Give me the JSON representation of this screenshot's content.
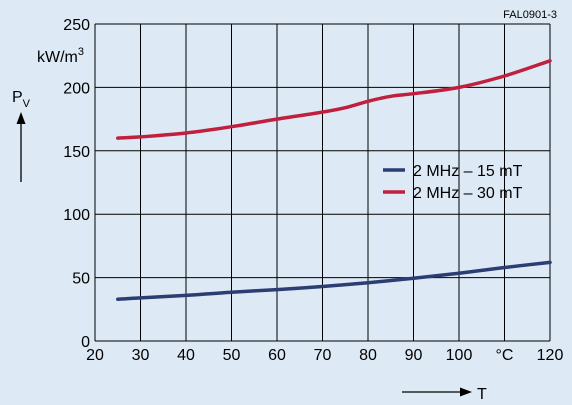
{
  "figure_id": "FAL0901-3",
  "chart_data": {
    "type": "line",
    "x_ticks": [
      "20",
      "30",
      "40",
      "50",
      "60",
      "70",
      "80",
      "90",
      "100",
      "°C",
      "120"
    ],
    "y_ticks": [
      "0",
      "50",
      "100",
      "150",
      "200",
      "250"
    ],
    "xlim": [
      20,
      120
    ],
    "ylim": [
      0,
      250
    ],
    "xlabel": "T",
    "ylabel": "P",
    "ylabel_sub": "V",
    "y_unit": "kW/m",
    "y_unit_sup": "3",
    "grid": true,
    "legend_position": "right",
    "series": [
      {
        "name": "2 MHz – 15 mT",
        "color": "#2b3d72",
        "x": [
          25,
          30,
          40,
          50,
          60,
          70,
          80,
          90,
          100,
          110,
          120
        ],
        "y": [
          33,
          34,
          36,
          38.5,
          40.5,
          43,
          46,
          49.5,
          53.5,
          58,
          62
        ]
      },
      {
        "name": "2 MHz – 30 mT",
        "color": "#c0203e",
        "x": [
          25,
          30,
          40,
          50,
          60,
          70,
          75,
          80,
          85,
          90,
          100,
          110,
          120
        ],
        "y": [
          160,
          161,
          164,
          169,
          175,
          180.5,
          184,
          189,
          193,
          195,
          200,
          209,
          221
        ]
      }
    ]
  }
}
